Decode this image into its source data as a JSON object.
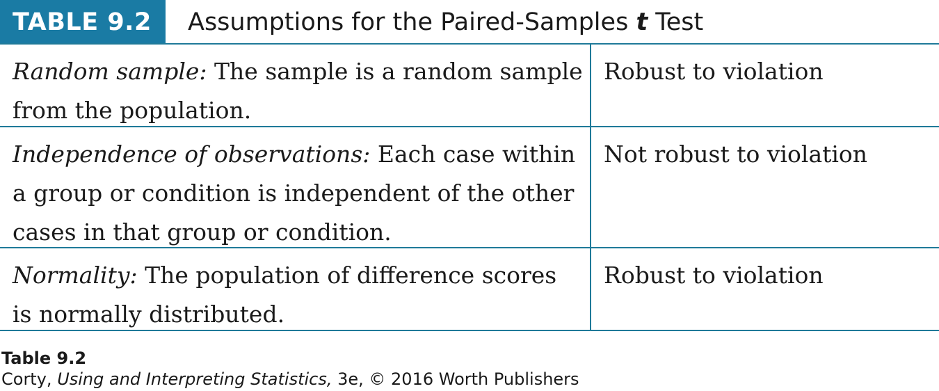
{
  "table": {
    "number": "TABLE 9.2",
    "title_before": "Assumptions for the Paired-Samples ",
    "title_italic": "t",
    "title_after": " Test",
    "rows": [
      {
        "term": "Random sample:",
        "description": " The sample is a random sample from the population.",
        "robustness": "Robust to violation"
      },
      {
        "term": "Independence of observations:",
        "description": " Each case within a group or condition is independent of the other cases in that group or condition.",
        "robustness": "Not robust to violation"
      },
      {
        "term": "Normality:",
        "description": " The population of difference scores is normally distributed.",
        "robustness": "Robust to violation"
      }
    ]
  },
  "footer": {
    "label": "Table 9.2",
    "credit_before": "Corty, ",
    "credit_italic": "Using and Interpreting Statistics,",
    "credit_after": " 3e, © 2016 Worth Publishers"
  },
  "colors": {
    "accent": "#1a7ba4",
    "rule": "#1f7a99"
  }
}
